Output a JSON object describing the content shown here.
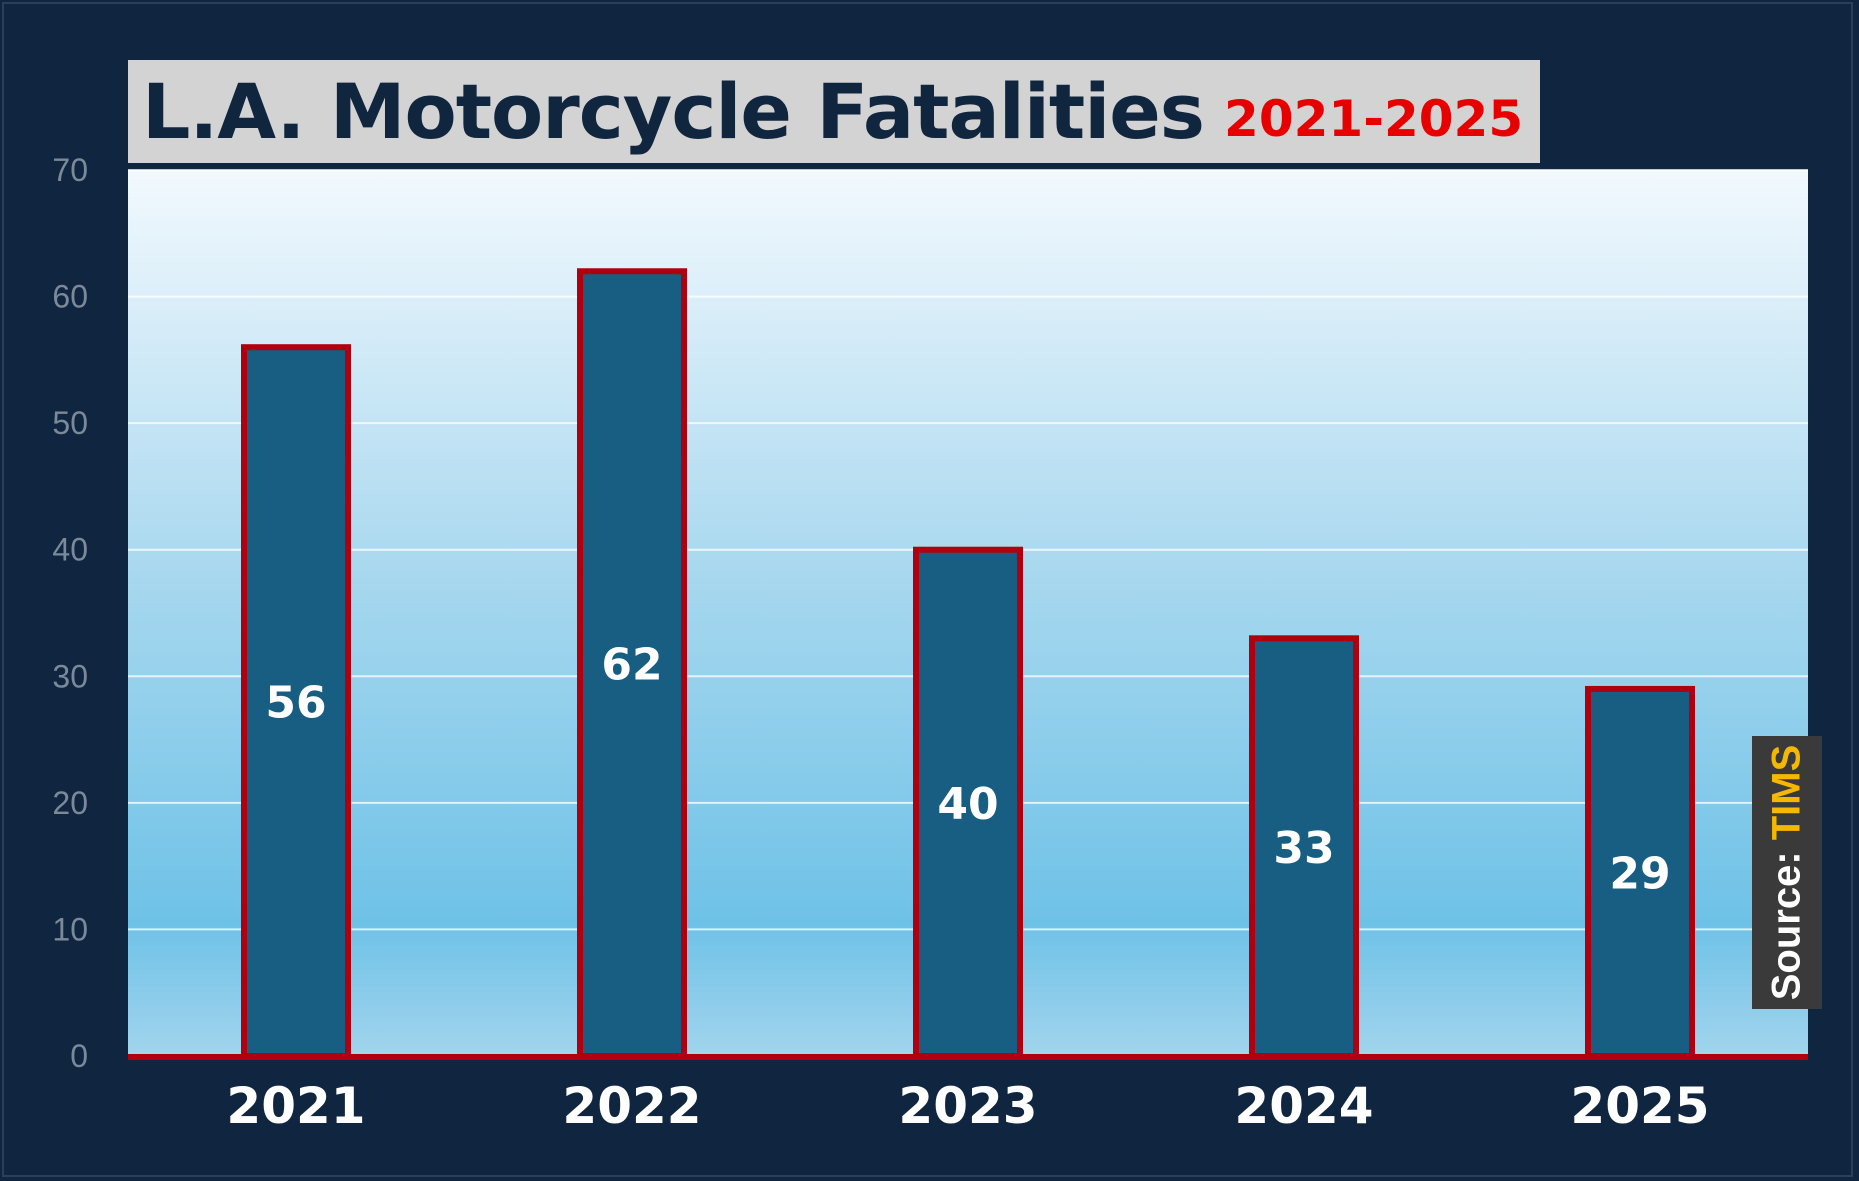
{
  "title": {
    "main": "L.A. Motorcycle Fatalities",
    "sub": "2021-2025"
  },
  "source": {
    "label": "Source: ",
    "value": "TIMS"
  },
  "colors": {
    "background": "#0f2540",
    "bar_fill": "#175e82",
    "bar_border": "#b00010",
    "title_box": "#d3d3d3",
    "title_text": "#10263f",
    "title_sub": "#e60000",
    "source_value": "#f5b800"
  },
  "chart_data": {
    "type": "bar",
    "categories": [
      "2021",
      "2022",
      "2023",
      "2024",
      "2025"
    ],
    "values": [
      56,
      62,
      40,
      33,
      29
    ],
    "data_labels": [
      "56",
      "62",
      "40",
      "33",
      "29"
    ],
    "title": "L.A. Motorcycle Fatalities 2021-2025",
    "xlabel": "",
    "ylabel": "",
    "ylim": [
      0,
      70
    ],
    "yticks": [
      "0",
      "10",
      "20",
      "30",
      "40",
      "50",
      "60",
      "70"
    ],
    "grid": true,
    "legend": "none"
  }
}
